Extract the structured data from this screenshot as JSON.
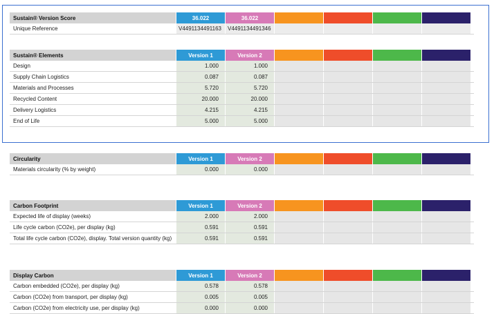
{
  "colors": {
    "version1": "#2e9ad6",
    "version2": "#d77ab7",
    "orange": "#f7941f",
    "red": "#ef4d2a",
    "green": "#4db84a",
    "navy": "#2b216a"
  },
  "score": {
    "title": "Sustain® Version Score",
    "v1": "36.022",
    "v2": "36.022",
    "ref_label": "Unique Reference",
    "ref_v1": "V4491134491163",
    "ref_v2": "V4491134491346"
  },
  "elements": {
    "title": "Sustain® Elements",
    "v1": "Version 1",
    "v2": "Version 2",
    "rows": [
      {
        "label": "Design",
        "v1": "1.000",
        "v2": "1.000"
      },
      {
        "label": "Supply Chain Logistics",
        "v1": "0.087",
        "v2": "0.087"
      },
      {
        "label": "Materials and Processes",
        "v1": "5.720",
        "v2": "5.720"
      },
      {
        "label": "Recycled Content",
        "v1": "20.000",
        "v2": "20.000"
      },
      {
        "label": "Delivery Logistics",
        "v1": "4.215",
        "v2": "4.215"
      },
      {
        "label": "End of Life",
        "v1": "5.000",
        "v2": "5.000"
      }
    ]
  },
  "circularity": {
    "title": "Circularity",
    "v1": "Version 1",
    "v2": "Version 2",
    "rows": [
      {
        "label": "Materials circularity (% by weight)",
        "v1": "0.000",
        "v2": "0.000"
      }
    ]
  },
  "carbon": {
    "title": "Carbon Footprint",
    "v1": "Version 1",
    "v2": "Version 2",
    "rows": [
      {
        "label": "Expected life of display (weeks)",
        "v1": "2.000",
        "v2": "2.000"
      },
      {
        "label": "Life cycle carbon (CO2e), per display (kg)",
        "v1": "0.591",
        "v2": "0.591"
      },
      {
        "label": "Total life cycle carbon (CO2e), display. Total version quantity (kg)",
        "v1": "0.591",
        "v2": "0.591"
      }
    ]
  },
  "display_carbon": {
    "title": "Display Carbon",
    "v1": "Version 1",
    "v2": "Version 2",
    "rows": [
      {
        "label": "Carbon embedded (CO2e), per display (kg)",
        "v1": "0.578",
        "v2": "0.578"
      },
      {
        "label": "Carbon (CO2e) from transport, per display (kg)",
        "v1": "0.005",
        "v2": "0.005"
      },
      {
        "label": "Carbon (CO2e) from electricity use, per display (kg)",
        "v1": "0.000",
        "v2": "0.000"
      }
    ]
  }
}
